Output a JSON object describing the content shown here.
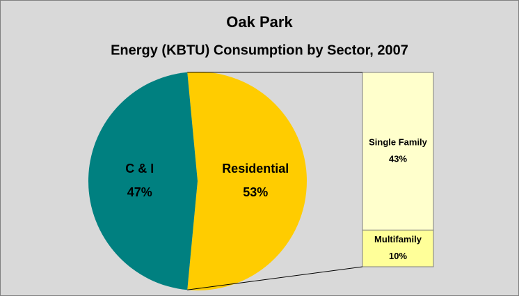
{
  "chart_data": {
    "type": "pie",
    "title": "Oak Park",
    "subtitle": "Energy (KBTU) Consumption by Sector, 2007",
    "categories": [
      "C & I",
      "Residential"
    ],
    "values": [
      47,
      53
    ],
    "value_labels": [
      "47%",
      "53%"
    ],
    "colors": [
      "#008080",
      "#ffcc00"
    ],
    "breakdown": {
      "categories": [
        "Single Family",
        "Multifamily"
      ],
      "values": [
        43,
        10
      ],
      "value_labels": [
        "43%",
        "10%"
      ],
      "colors": [
        "#ffffcc",
        "#ffff99"
      ]
    }
  }
}
